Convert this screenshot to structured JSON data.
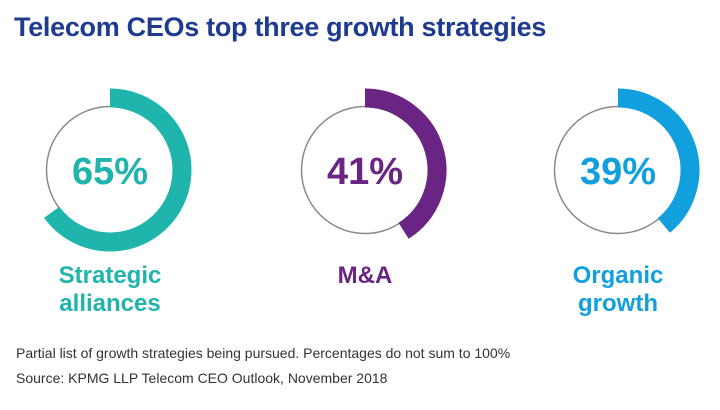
{
  "colors": {
    "title": "#1f3b8f",
    "ring_background": "#ffffff",
    "ring_outline": "#8a8a8a",
    "text": "#333333"
  },
  "chart_data": {
    "type": "pie",
    "title": "Telecom CEOs top three growth strategies",
    "value_unit": "%",
    "items": [
      {
        "label_lines": [
          "Strategic",
          "alliances"
        ],
        "value": 65,
        "display": "65%",
        "color": "#1fb5ac"
      },
      {
        "label_lines": [
          "M&A"
        ],
        "value": 41,
        "display": "41%",
        "color": "#6a2483"
      },
      {
        "label_lines": [
          "Organic",
          "growth"
        ],
        "value": 39,
        "display": "39%",
        "color": "#129fdd"
      }
    ]
  },
  "footnotes": {
    "note": "Partial list of growth strategies being pursued. Percentages do not sum to 100%",
    "source": "Source: KPMG LLP Telecom CEO Outlook, November 2018"
  }
}
